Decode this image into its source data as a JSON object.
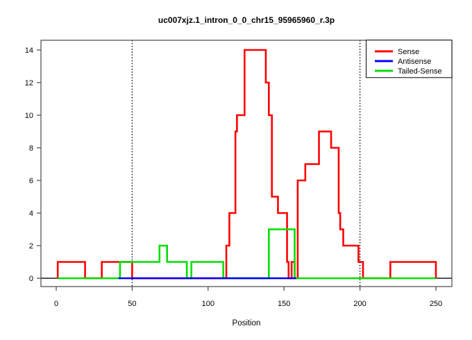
{
  "window": {
    "background": "#ffffff"
  },
  "chart_data": {
    "type": "line",
    "subtype": "step",
    "title": "uc007xjz.1_intron_0_0_chr15_95965960_r.3p",
    "xlabel": "Position",
    "ylabel": "",
    "x_ticks": [
      0,
      50,
      100,
      150,
      200,
      250
    ],
    "y_ticks": [
      0,
      2,
      4,
      6,
      8,
      10,
      12,
      14
    ],
    "xlim": [
      -10,
      260
    ],
    "ylim": [
      -0.56,
      14.56
    ],
    "grid": false,
    "vlines": {
      "positions": [
        50,
        200
      ],
      "style": "dotted",
      "color": "#000000"
    },
    "zero_line": {
      "y": 0,
      "color": "#1a1a1a"
    },
    "axis_color": "#555555",
    "legend": {
      "position": "top-right",
      "border_color": "#000000",
      "background": "#ffffff",
      "entries": [
        "Sense",
        "Antisense",
        "Tailed-Sense"
      ]
    },
    "series": [
      {
        "name": "Sense",
        "color": "#ff0000",
        "end": 250,
        "steps": [
          [
            1,
            1
          ],
          [
            19,
            0
          ],
          [
            30,
            1
          ],
          [
            50,
            0
          ],
          [
            112,
            2
          ],
          [
            114,
            4
          ],
          [
            118,
            9
          ],
          [
            119,
            10
          ],
          [
            124,
            14
          ],
          [
            138,
            12
          ],
          [
            140,
            10
          ],
          [
            142,
            5
          ],
          [
            146,
            4
          ],
          [
            152,
            1
          ],
          [
            153,
            0
          ],
          [
            155,
            1
          ],
          [
            157,
            0
          ],
          [
            159,
            6
          ],
          [
            164,
            7
          ],
          [
            173,
            9
          ],
          [
            181,
            8
          ],
          [
            186,
            4
          ],
          [
            187,
            3
          ],
          [
            189,
            2
          ],
          [
            199,
            1
          ],
          [
            202,
            0
          ],
          [
            220,
            1
          ],
          [
            250,
            0
          ]
        ]
      },
      {
        "name": "Antisense",
        "color": "#0000ff",
        "end": 158,
        "steps": [
          [
            41,
            0
          ]
        ]
      },
      {
        "name": "Tailed-Sense",
        "color": "#00e000",
        "end": 250,
        "steps": [
          [
            1,
            0
          ],
          [
            42,
            1
          ],
          [
            68,
            2
          ],
          [
            73,
            1
          ],
          [
            86,
            0
          ],
          [
            89,
            1
          ],
          [
            110,
            0
          ],
          [
            140,
            3
          ],
          [
            157,
            0
          ]
        ]
      }
    ],
    "draw_order": [
      0,
      2,
      1
    ]
  }
}
